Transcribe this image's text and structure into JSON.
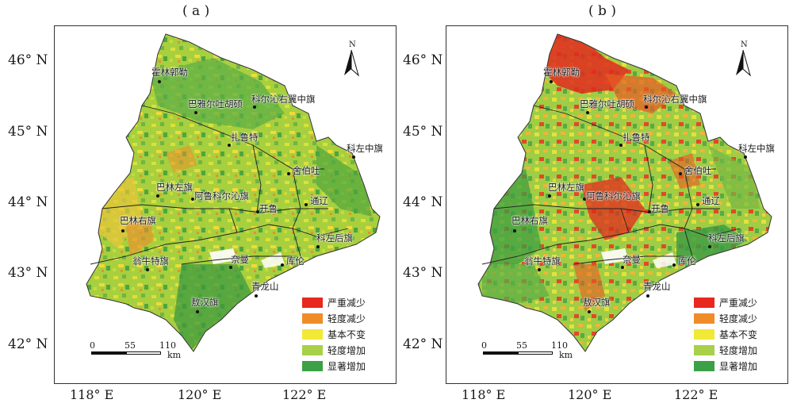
{
  "panels": [
    {
      "id": "a",
      "title": "( a )",
      "lat_labels": [
        "46° N",
        "45° N",
        "44° N",
        "43° N",
        "42° N"
      ],
      "lon_labels": [
        "118° E",
        "120° E",
        "122° E"
      ],
      "north_label": "N",
      "scale": {
        "t0": "0",
        "t1": "55",
        "t2": "110",
        "unit": "km"
      },
      "legend": [
        {
          "label": "严重减少",
          "color": "#e8281e"
        },
        {
          "label": "轻度减少",
          "color": "#f08c28"
        },
        {
          "label": "基本不变",
          "color": "#f2e838"
        },
        {
          "label": "轻度增加",
          "color": "#a8d048"
        },
        {
          "label": "显著增加",
          "color": "#3ca046"
        }
      ],
      "cities": [
        "霍林郭勒",
        "巴雅尔吐胡硕",
        "科尔沁右翼中旗",
        "扎鲁特",
        "科左中旗",
        "舍伯吐",
        "巴林左旗",
        "阿鲁科尔沁旗",
        "开鲁",
        "通辽",
        "巴林右旗",
        "科左后旗",
        "翁牛特旗",
        "奈曼",
        "库伦",
        "青龙山",
        "敖汉旗"
      ]
    },
    {
      "id": "b",
      "title": "( b )",
      "lat_labels": [
        "46° N",
        "45° N",
        "44° N",
        "43° N",
        "42° N"
      ],
      "lon_labels": [
        "118° E",
        "120° E",
        "122° E"
      ],
      "north_label": "N",
      "scale": {
        "t0": "0",
        "t1": "55",
        "t2": "110",
        "unit": "km"
      },
      "legend": [
        {
          "label": "严重减少",
          "color": "#e8281e"
        },
        {
          "label": "轻度减少",
          "color": "#f08c28"
        },
        {
          "label": "基本不变",
          "color": "#f2e838"
        },
        {
          "label": "轻度增加",
          "color": "#a8d048"
        },
        {
          "label": "显著增加",
          "color": "#3ca046"
        }
      ],
      "cities": [
        "霍林郭勒",
        "巴雅尔吐胡硕",
        "科尔沁右翼中旗",
        "扎鲁特",
        "科左中旗",
        "舍伯吐",
        "巴林左旗",
        "阿鲁科尔沁旗",
        "开鲁",
        "通辽",
        "巴林右旗",
        "科左后旗",
        "翁牛特旗",
        "奈曼",
        "库伦",
        "青龙山",
        "敖汉旗"
      ]
    }
  ]
}
